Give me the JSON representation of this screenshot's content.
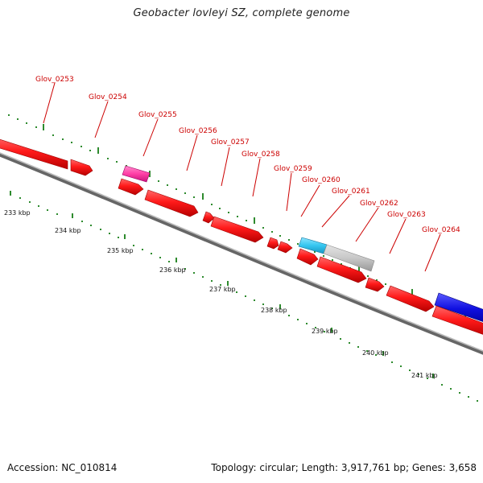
{
  "title": "Geobacter lovleyi SZ, complete genome",
  "footer": {
    "accession": "Accession: NC_010814",
    "summary": "Topology: circular; Length: 3,917,761 bp; Genes: 3,658"
  },
  "colors": {
    "background": "#ffffff",
    "backbone": "#8a8a8a",
    "tick": "#2e8b2e",
    "label": "#cc0000",
    "cds": "#ff0000",
    "rna_pink": "#ff3fa6",
    "cyan": "#35c6f0",
    "gray": "#c8c8c8",
    "blue": "#1010e0"
  },
  "genes": [
    "Glov_0253",
    "Glov_0254",
    "Glov_0255",
    "Glov_0256",
    "Glov_0257",
    "Glov_0258",
    "Glov_0259",
    "Glov_0260",
    "Glov_0261",
    "Glov_0262",
    "Glov_0263",
    "Glov_0264"
  ],
  "kbp_labels": [
    "233 kbp",
    "234 kbp",
    "235 kbp",
    "236 kbp",
    "237 kbp",
    "238 kbp",
    "239 kbp",
    "240 kbp",
    "241 kbp"
  ]
}
